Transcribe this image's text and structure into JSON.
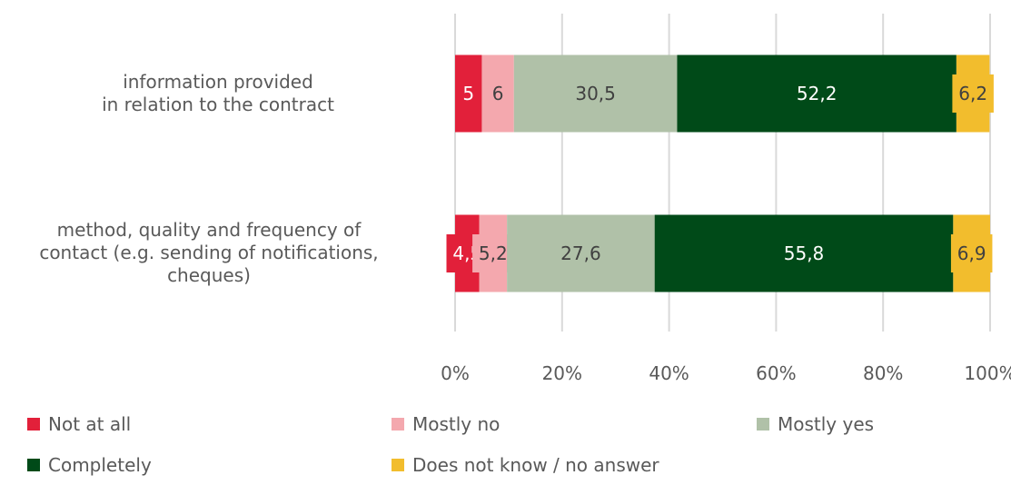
{
  "chart_data": {
    "type": "bar",
    "orientation": "horizontal",
    "stacked": true,
    "categories": [
      "information provided\n in relation to the contract",
      "method, quality and frequency of\ncontact (e.g. sending of notifications,\ncheques)"
    ],
    "series": [
      {
        "name": "Not at all",
        "color": "#e2203a",
        "values": [
          5,
          4.5
        ],
        "labels": [
          "5",
          "4,5"
        ]
      },
      {
        "name": "Mostly no",
        "color": "#f4a8ae",
        "values": [
          6,
          5.2
        ],
        "labels": [
          "6",
          "5,2"
        ]
      },
      {
        "name": "Mostly yes",
        "color": "#b0c1a8",
        "values": [
          30.5,
          27.6
        ],
        "labels": [
          "30,5",
          "27,6"
        ]
      },
      {
        "name": "Completely",
        "color": "#004a18",
        "values": [
          52.2,
          55.8
        ],
        "labels": [
          "52,2",
          "55,8"
        ]
      },
      {
        "name": "Does not know / no answer",
        "color": "#f2bd2d",
        "values": [
          6.2,
          6.9
        ],
        "labels": [
          "6,2",
          "6,9"
        ]
      }
    ],
    "xlim": [
      0,
      100
    ],
    "xticks": [
      "0%",
      "20%",
      "40%",
      "60%",
      "80%",
      "100%"
    ],
    "grid": true,
    "legend_position": "bottom"
  }
}
